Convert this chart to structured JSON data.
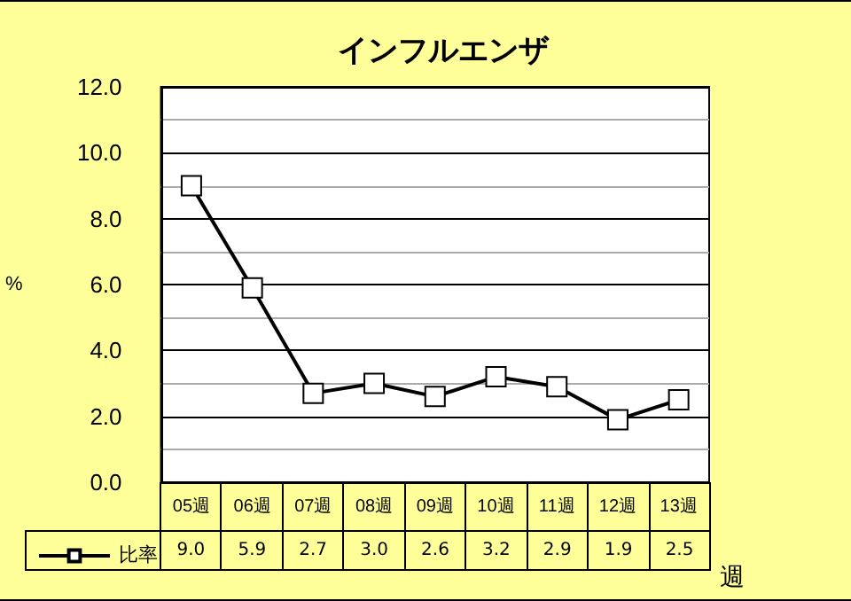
{
  "chart_data": {
    "type": "line",
    "title": "インフルエンザ",
    "ylabel": "%",
    "xlabel": "週",
    "categories": [
      "05週",
      "06週",
      "07週",
      "08週",
      "09週",
      "10週",
      "11週",
      "12週",
      "13週"
    ],
    "series": [
      {
        "name": "比率",
        "color": "#000000",
        "values": [
          9.0,
          5.9,
          2.7,
          3.0,
          2.6,
          3.2,
          2.9,
          1.9,
          2.5
        ],
        "value_labels": [
          "9.0",
          "5.9",
          "2.7",
          "3.0",
          "2.6",
          "3.2",
          "2.9",
          "1.9",
          "2.5"
        ]
      }
    ],
    "ylim": [
      0,
      12
    ],
    "yticks": [
      {
        "value": 0,
        "label": "0.0"
      },
      {
        "value": 2,
        "label": "2.0"
      },
      {
        "value": 4,
        "label": "4.0"
      },
      {
        "value": 6,
        "label": "6.0"
      },
      {
        "value": 8,
        "label": "8.0"
      },
      {
        "value": 10,
        "label": "10.0"
      },
      {
        "value": 12,
        "label": "12.0"
      }
    ],
    "grid": "y",
    "legend": "bottom left",
    "marker": "square",
    "line_style": "solid"
  }
}
